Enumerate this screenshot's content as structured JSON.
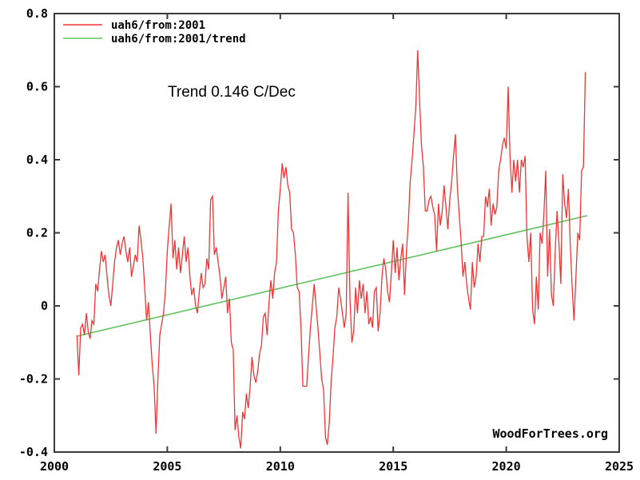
{
  "chart_data": {
    "type": "line",
    "annotation": "Trend 0.146 C/Dec",
    "watermark": "WoodForTrees.org",
    "grid": false,
    "legend_position": "top-left",
    "x_axis": {
      "min": 2000,
      "max": 2025,
      "ticks": [
        2000,
        2005,
        2010,
        2015,
        2020,
        2025
      ],
      "tick_labels": [
        "2000",
        "2005",
        "2010",
        "2015",
        "2020",
        "2025"
      ]
    },
    "y_axis": {
      "min": -0.4,
      "max": 0.8,
      "ticks": [
        -0.4,
        -0.2,
        0,
        0.2,
        0.4,
        0.6,
        0.8
      ],
      "tick_labels": [
        "-0.4",
        "-0.2",
        "0",
        "0.2",
        "0.4",
        "0.6",
        "0.8"
      ]
    },
    "series": [
      {
        "name": "uah6/from:2001",
        "color": "#f03434",
        "kind": "monthly",
        "start_year": 2001,
        "points_per_year": 12,
        "values": [
          -0.08,
          -0.19,
          -0.06,
          -0.05,
          -0.08,
          -0.02,
          -0.07,
          -0.09,
          -0.04,
          -0.05,
          0.06,
          0.04,
          0.1,
          0.15,
          0.12,
          0.14,
          0.08,
          0.03,
          0.0,
          0.06,
          0.12,
          0.16,
          0.18,
          0.14,
          0.17,
          0.19,
          0.15,
          0.12,
          0.16,
          0.08,
          0.11,
          0.14,
          0.12,
          0.22,
          0.18,
          0.13,
          0.05,
          -0.04,
          0.01,
          -0.08,
          -0.16,
          -0.22,
          -0.35,
          -0.2,
          -0.08,
          -0.05,
          -0.02,
          0.04,
          0.15,
          0.22,
          0.28,
          0.13,
          0.18,
          0.1,
          0.16,
          0.09,
          0.14,
          0.19,
          0.12,
          0.16,
          0.08,
          0.03,
          0.05,
          0.0,
          -0.02,
          0.04,
          0.09,
          0.05,
          0.06,
          0.13,
          0.1,
          0.29,
          0.3,
          0.14,
          0.16,
          0.12,
          0.08,
          0.02,
          0.05,
          0.08,
          -0.02,
          0.02,
          -0.1,
          -0.12,
          -0.34,
          -0.3,
          -0.36,
          -0.39,
          -0.29,
          -0.31,
          -0.24,
          -0.28,
          -0.22,
          -0.14,
          -0.19,
          -0.21,
          -0.18,
          -0.13,
          -0.11,
          -0.03,
          -0.02,
          -0.08,
          0.01,
          0.07,
          0.02,
          0.09,
          0.12,
          0.26,
          0.32,
          0.39,
          0.35,
          0.38,
          0.33,
          0.31,
          0.21,
          0.2,
          0.14,
          0.05,
          0.04,
          -0.06,
          -0.22,
          -0.22,
          -0.22,
          -0.14,
          -0.06,
          0.0,
          0.06,
          0.0,
          -0.06,
          -0.13,
          -0.2,
          -0.23,
          -0.36,
          -0.38,
          -0.32,
          -0.21,
          -0.14,
          -0.06,
          -0.03,
          0.05,
          0.02,
          -0.02,
          -0.06,
          -0.02,
          0.31,
          0.02,
          -0.1,
          -0.07,
          0.05,
          -0.02,
          0.07,
          0.02,
          0.06,
          -0.02,
          0.04,
          -0.05,
          -0.03,
          -0.06,
          0.04,
          0.05,
          -0.07,
          -0.02,
          0.08,
          0.13,
          0.1,
          0.04,
          0.01,
          0.09,
          0.18,
          0.09,
          0.16,
          0.07,
          0.13,
          0.17,
          0.03,
          0.15,
          0.23,
          0.34,
          0.4,
          0.47,
          0.55,
          0.7,
          0.56,
          0.44,
          0.38,
          0.26,
          0.26,
          0.29,
          0.3,
          0.27,
          0.25,
          0.15,
          0.28,
          0.22,
          0.26,
          0.33,
          0.27,
          0.21,
          0.29,
          0.34,
          0.41,
          0.47,
          0.33,
          0.25,
          0.18,
          0.08,
          0.12,
          0.06,
          0.02,
          -0.01,
          0.12,
          0.05,
          0.08,
          0.17,
          0.12,
          0.19,
          0.19,
          0.3,
          0.27,
          0.32,
          0.22,
          0.28,
          0.25,
          0.27,
          0.37,
          0.4,
          0.44,
          0.46,
          0.43,
          0.6,
          0.41,
          0.31,
          0.4,
          0.34,
          0.4,
          0.31,
          0.4,
          0.38,
          0.41,
          0.19,
          0.12,
          0.2,
          -0.01,
          -0.05,
          0.08,
          -0.01,
          0.2,
          0.17,
          0.25,
          0.37,
          0.08,
          0.21,
          0.03,
          0.0,
          0.15,
          0.26,
          0.17,
          0.06,
          0.36,
          0.28,
          0.24,
          0.32,
          0.17,
          0.05,
          -0.04,
          0.08,
          0.2,
          0.18,
          0.37,
          0.38,
          0.64
        ]
      },
      {
        "name": "uah6/from:2001/trend",
        "color": "#5fc35f",
        "kind": "trend",
        "trend": {
          "x1": 2001.0,
          "y1": -0.083,
          "x2": 2023.583,
          "y2": 0.247
        }
      }
    ]
  }
}
